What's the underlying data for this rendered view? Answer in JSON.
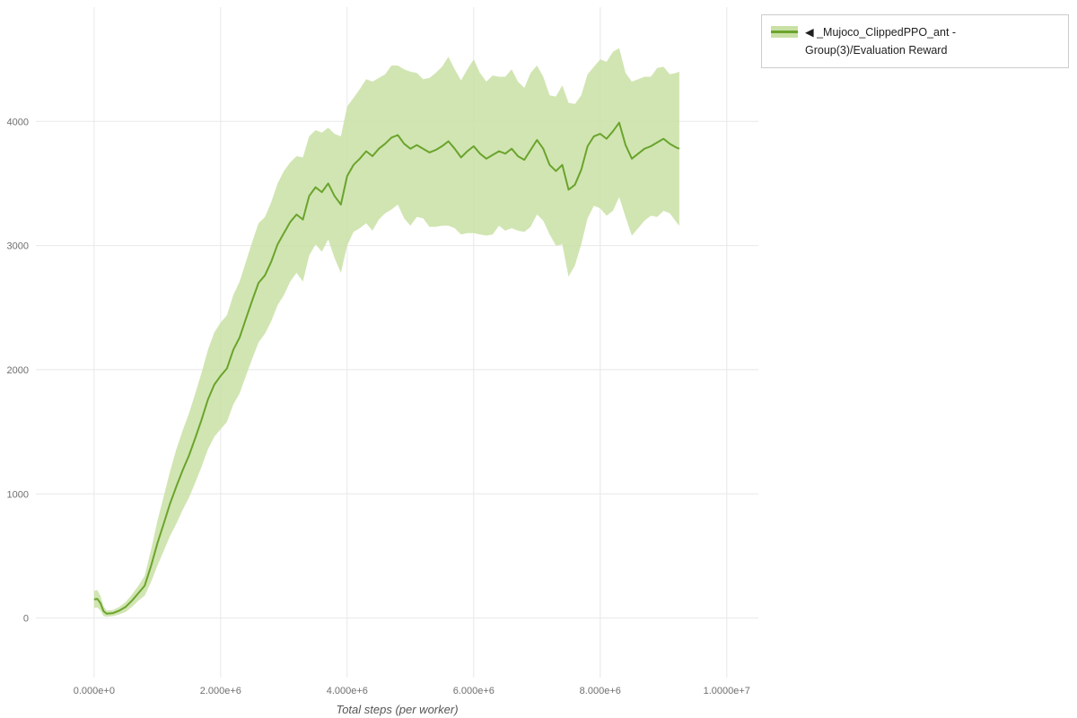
{
  "legend": {
    "marker": "◀",
    "label": "_Mujoco_ClippedPPO_ant - Group(3)/Evaluation Reward"
  },
  "colors": {
    "line": "#6aa42c",
    "band": "#c9e0a5",
    "grid": "#e8e8e8",
    "tick_text": "#6f6f6f",
    "axis_label_text": "#555555",
    "legend_border": "#cccccc",
    "legend_text": "#1f1f1f",
    "background": "#ffffff"
  },
  "chart_data": {
    "type": "line",
    "title": "",
    "xlabel": "Total steps (per worker)",
    "ylabel": "",
    "grid": true,
    "legend_position": "top-right-outside",
    "xlim": [
      -920000,
      10500000
    ],
    "ylim": [
      -480,
      4920
    ],
    "x_scale": 1000000,
    "x_ticks": [
      {
        "value": 0,
        "label": "0.000e+0"
      },
      {
        "value": 2000000,
        "label": "2.000e+6"
      },
      {
        "value": 4000000,
        "label": "4.000e+6"
      },
      {
        "value": 6000000,
        "label": "6.000e+6"
      },
      {
        "value": 8000000,
        "label": "8.000e+6"
      },
      {
        "value": 10000000,
        "label": "1.0000e+7"
      }
    ],
    "y_ticks": [
      {
        "value": 0,
        "label": "0"
      },
      {
        "value": 1000,
        "label": "1000"
      },
      {
        "value": 2000,
        "label": "2000"
      },
      {
        "value": 3000,
        "label": "3000"
      },
      {
        "value": 4000,
        "label": "4000"
      }
    ],
    "series": [
      {
        "name": "_Mujoco_ClippedPPO_ant - Group(3)/Evaluation Reward",
        "x_millions": [
          0,
          0.05,
          0.1,
          0.15,
          0.2,
          0.3,
          0.4,
          0.5,
          0.6,
          0.7,
          0.8,
          0.9,
          1.0,
          1.1,
          1.2,
          1.3,
          1.4,
          1.5,
          1.6,
          1.7,
          1.8,
          1.9,
          2.0,
          2.1,
          2.2,
          2.3,
          2.4,
          2.5,
          2.6,
          2.7,
          2.8,
          2.9,
          3.0,
          3.1,
          3.2,
          3.3,
          3.4,
          3.5,
          3.6,
          3.7,
          3.8,
          3.9,
          4.0,
          4.1,
          4.2,
          4.3,
          4.4,
          4.5,
          4.6,
          4.7,
          4.8,
          4.9,
          5.0,
          5.1,
          5.2,
          5.3,
          5.4,
          5.5,
          5.6,
          5.7,
          5.8,
          5.9,
          6.0,
          6.1,
          6.2,
          6.3,
          6.4,
          6.5,
          6.6,
          6.7,
          6.8,
          6.9,
          7.0,
          7.1,
          7.2,
          7.3,
          7.4,
          7.5,
          7.6,
          7.7,
          7.8,
          7.9,
          8.0,
          8.1,
          8.2,
          8.3,
          8.4,
          8.5,
          8.6,
          8.7,
          8.8,
          8.9,
          9.0,
          9.1,
          9.2,
          9.25
        ],
        "mean": [
          150,
          155,
          120,
          55,
          35,
          40,
          60,
          90,
          140,
          200,
          260,
          420,
          600,
          760,
          920,
          1060,
          1190,
          1310,
          1450,
          1600,
          1760,
          1880,
          1950,
          2010,
          2160,
          2260,
          2410,
          2560,
          2700,
          2760,
          2870,
          3010,
          3100,
          3190,
          3250,
          3210,
          3400,
          3470,
          3430,
          3500,
          3400,
          3330,
          3560,
          3650,
          3700,
          3760,
          3720,
          3780,
          3820,
          3870,
          3890,
          3820,
          3780,
          3810,
          3780,
          3750,
          3770,
          3800,
          3840,
          3780,
          3710,
          3760,
          3800,
          3740,
          3700,
          3730,
          3760,
          3740,
          3780,
          3720,
          3690,
          3770,
          3850,
          3780,
          3650,
          3600,
          3650,
          3450,
          3490,
          3610,
          3800,
          3880,
          3900,
          3860,
          3920,
          3990,
          3810,
          3700,
          3740,
          3780,
          3800,
          3830,
          3860,
          3820,
          3790,
          3780
        ],
        "spread": [
          70,
          70,
          60,
          40,
          25,
          25,
          30,
          40,
          50,
          60,
          80,
          130,
          180,
          220,
          260,
          300,
          320,
          340,
          360,
          380,
          400,
          420,
          430,
          430,
          440,
          450,
          460,
          470,
          480,
          470,
          480,
          490,
          500,
          480,
          470,
          500,
          480,
          460,
          480,
          450,
          500,
          550,
          560,
          540,
          560,
          580,
          600,
          570,
          560,
          580,
          560,
          600,
          620,
          580,
          560,
          600,
          620,
          640,
          680,
          640,
          620,
          660,
          700,
          650,
          620,
          640,
          600,
          620,
          640,
          600,
          580,
          620,
          600,
          580,
          560,
          600,
          640,
          700,
          650,
          600,
          580,
          560,
          600,
          620,
          640,
          600,
          580,
          620,
          600,
          580,
          560,
          600,
          580,
          560,
          600,
          620
        ]
      }
    ]
  }
}
